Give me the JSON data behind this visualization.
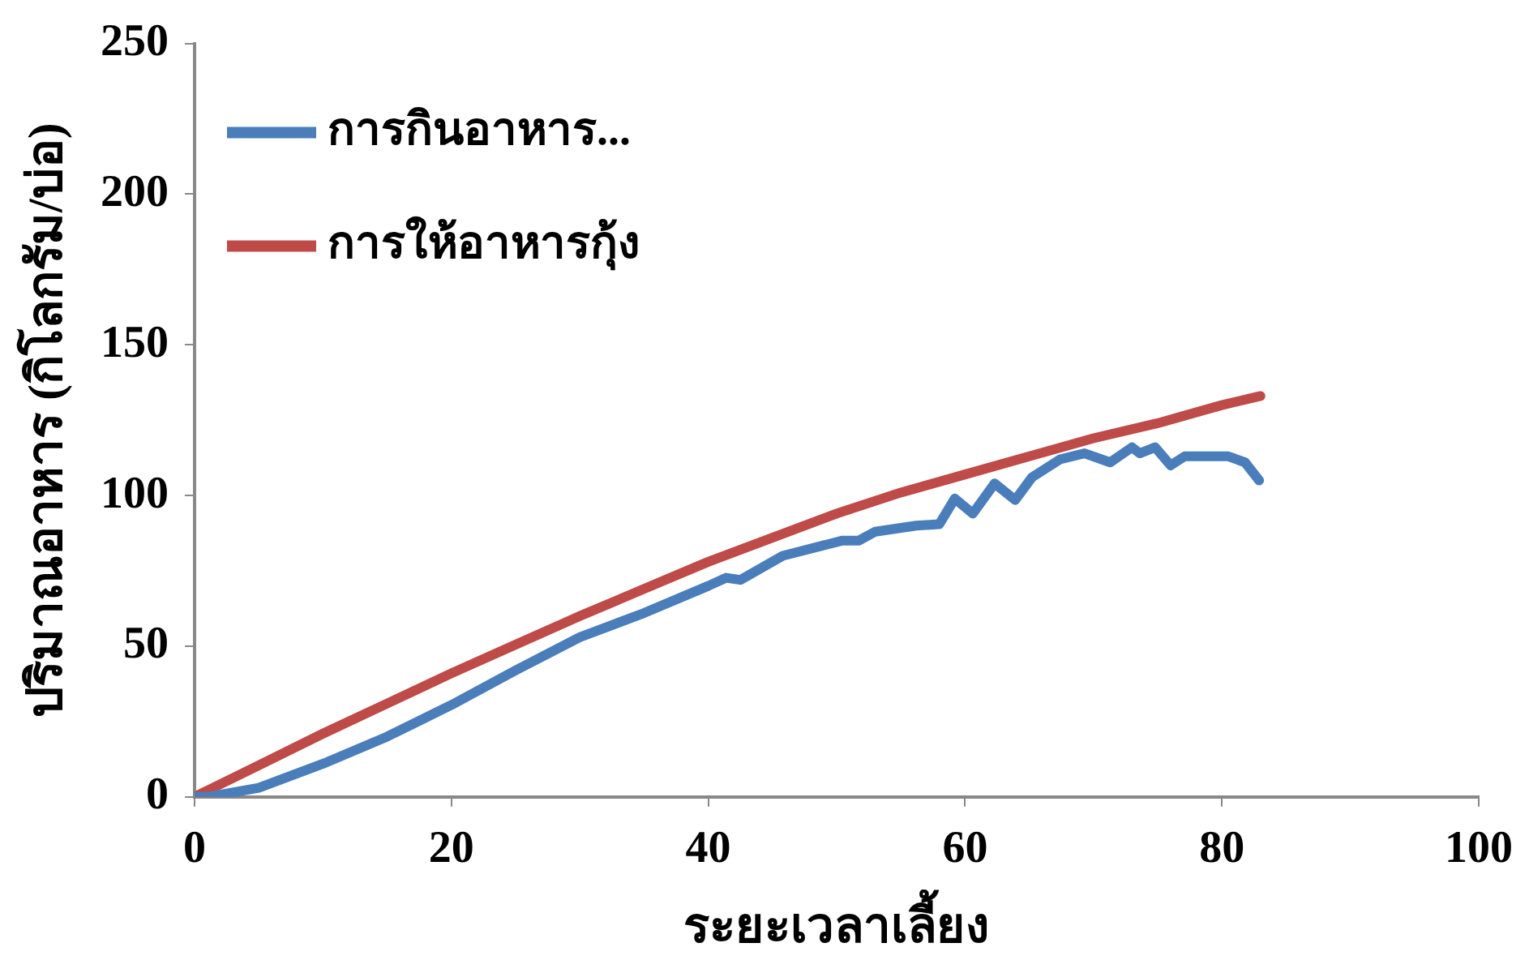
{
  "chart_data": {
    "type": "line",
    "xlabel": "ระยะเวลาเลี้ยง",
    "ylabel": "ปริมาณอาหาร (กิโลกรัม/บ่อ)",
    "xlim": [
      0,
      100
    ],
    "xticks": [
      0,
      20,
      40,
      60,
      80,
      100
    ],
    "ylim": [
      0,
      250
    ],
    "yticks": [
      0,
      50,
      100,
      150,
      200,
      250
    ],
    "grid": false,
    "legend": "top left",
    "marker": "none",
    "line_style": "solid",
    "series": [
      {
        "name": "การกินอาหาร...",
        "color": "#4a7ebb",
        "x": [
          0,
          1,
          5,
          10,
          15,
          20,
          25,
          30,
          35,
          40,
          41.4,
          42.5,
          45.8,
          50.4,
          51.7,
          53,
          56.2,
          58,
          59.2,
          60.6,
          62.3,
          63.9,
          65.2,
          67.4,
          69.3,
          71.3,
          73,
          73.6,
          74.8,
          76,
          77.1,
          80.5,
          81.8,
          82.9
        ],
        "values": [
          0,
          0,
          3,
          11,
          20,
          30.5,
          42,
          53,
          61,
          70,
          72.7,
          72,
          80,
          85,
          85,
          88,
          90,
          90.5,
          99,
          94,
          104,
          98.5,
          106,
          112,
          114,
          111,
          116,
          114,
          116,
          110,
          113,
          113,
          111,
          105
        ]
      },
      {
        "name": "การให้อาหารกุ้ง",
        "color": "#be4b48",
        "x": [
          0,
          5,
          10,
          15,
          20,
          25,
          30,
          35,
          40,
          45,
          50,
          55,
          60,
          65,
          70,
          75,
          80,
          83
        ],
        "values": [
          0,
          10.5,
          21,
          31,
          41,
          50.5,
          60,
          69,
          78,
          86,
          94,
          101,
          107,
          113,
          119,
          124,
          130,
          133
        ]
      }
    ]
  }
}
